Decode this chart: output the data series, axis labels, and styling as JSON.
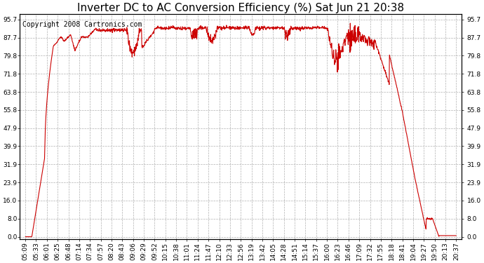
{
  "title": "Inverter DC to AC Conversion Efficiency (%) Sat Jun 21 20:38",
  "copyright": "Copyright 2008 Cartronics.com",
  "line_color": "#cc0000",
  "background_color": "#ffffff",
  "plot_bg_color": "#ffffff",
  "grid_color": "#b0b0b0",
  "yticks": [
    0.0,
    8.0,
    16.0,
    23.9,
    31.9,
    39.9,
    47.9,
    55.8,
    63.8,
    71.8,
    79.8,
    87.7,
    95.7
  ],
  "ylim": [
    -1,
    98
  ],
  "xtick_labels": [
    "05:09",
    "05:33",
    "06:01",
    "06:25",
    "06:48",
    "07:14",
    "07:34",
    "07:57",
    "08:20",
    "08:43",
    "09:06",
    "09:29",
    "09:52",
    "10:15",
    "10:38",
    "11:01",
    "11:24",
    "11:47",
    "12:10",
    "12:33",
    "12:56",
    "13:19",
    "13:42",
    "14:05",
    "14:28",
    "14:51",
    "15:14",
    "15:37",
    "16:00",
    "16:23",
    "16:46",
    "17:09",
    "17:32",
    "17:55",
    "18:18",
    "18:41",
    "19:04",
    "19:27",
    "19:50",
    "20:13",
    "20:37"
  ],
  "title_fontsize": 11,
  "tick_fontsize": 6.5,
  "copyright_fontsize": 7
}
